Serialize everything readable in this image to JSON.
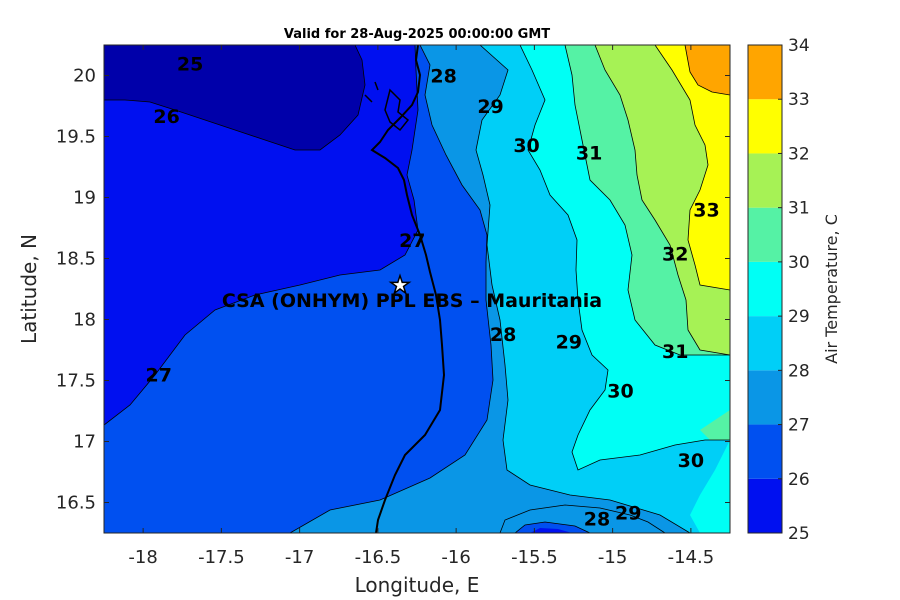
{
  "title": "Valid for 28-Aug-2025 00:00:00 GMT",
  "site_label": "CSA (ONHYM) PPL EBS  – Mauritania",
  "site": {
    "lon": -16.35,
    "lat": 18.27
  },
  "axes": {
    "xlabel": "Longitude, E",
    "ylabel": "Latitude, N",
    "xlim": [
      -18.25,
      -14.25
    ],
    "ylim": [
      16.25,
      20.25
    ],
    "xticks": [
      -18,
      -17.5,
      -17,
      -16.5,
      -16,
      -15.5,
      -15,
      -14.5
    ],
    "xtick_labels": [
      "-18",
      "-17.5",
      "-17",
      "-16.5",
      "-16",
      "-15.5",
      "-15",
      "-14.5"
    ],
    "yticks": [
      16.5,
      17,
      17.5,
      18,
      18.5,
      19,
      19.5,
      20
    ],
    "ytick_labels": [
      "16.5",
      "17",
      "17.5",
      "18",
      "18.5",
      "19",
      "19.5",
      "20"
    ]
  },
  "colorbar": {
    "label": "Air Temperature, C",
    "levels": [
      25,
      26,
      27,
      28,
      29,
      30,
      31,
      32,
      33,
      34
    ],
    "level_labels": [
      "25",
      "26",
      "27",
      "28",
      "29",
      "30",
      "31",
      "32",
      "33",
      "34"
    ],
    "colors": [
      "#0000AA",
      "#0010F0",
      "#0050F0",
      "#0A96E6",
      "#00CFF7",
      "#00FFF5",
      "#55F2A5",
      "#A6F255",
      "#FFFF00",
      "#FFA500",
      "#FF5A00"
    ]
  },
  "chart_data": {
    "type": "heatmap",
    "variable": "Air Temperature, C",
    "contour_levels": [
      25,
      26,
      27,
      28,
      29,
      30,
      31,
      32,
      33,
      34
    ],
    "contour_labels": [
      {
        "text": "25",
        "lon": -17.7,
        "lat": 20.1
      },
      {
        "text": "26",
        "lon": -17.85,
        "lat": 19.67
      },
      {
        "text": "27",
        "lon": -17.9,
        "lat": 17.55
      },
      {
        "text": "27",
        "lon": -16.28,
        "lat": 18.65
      },
      {
        "text": "28",
        "lon": -16.08,
        "lat": 20.0
      },
      {
        "text": "28",
        "lon": -15.7,
        "lat": 17.88
      },
      {
        "text": "28",
        "lon": -15.1,
        "lat": 16.37
      },
      {
        "text": "29",
        "lon": -15.78,
        "lat": 19.75
      },
      {
        "text": "29",
        "lon": -15.28,
        "lat": 17.82
      },
      {
        "text": "29",
        "lon": -14.9,
        "lat": 16.42
      },
      {
        "text": "30",
        "lon": -15.55,
        "lat": 19.43
      },
      {
        "text": "30",
        "lon": -14.95,
        "lat": 17.42
      },
      {
        "text": "30",
        "lon": -14.5,
        "lat": 16.85
      },
      {
        "text": "31",
        "lon": -15.15,
        "lat": 19.37
      },
      {
        "text": "31",
        "lon": -14.6,
        "lat": 17.74
      },
      {
        "text": "32",
        "lon": -14.6,
        "lat": 18.54
      },
      {
        "text": "33",
        "lon": -14.4,
        "lat": 18.9
      }
    ]
  }
}
